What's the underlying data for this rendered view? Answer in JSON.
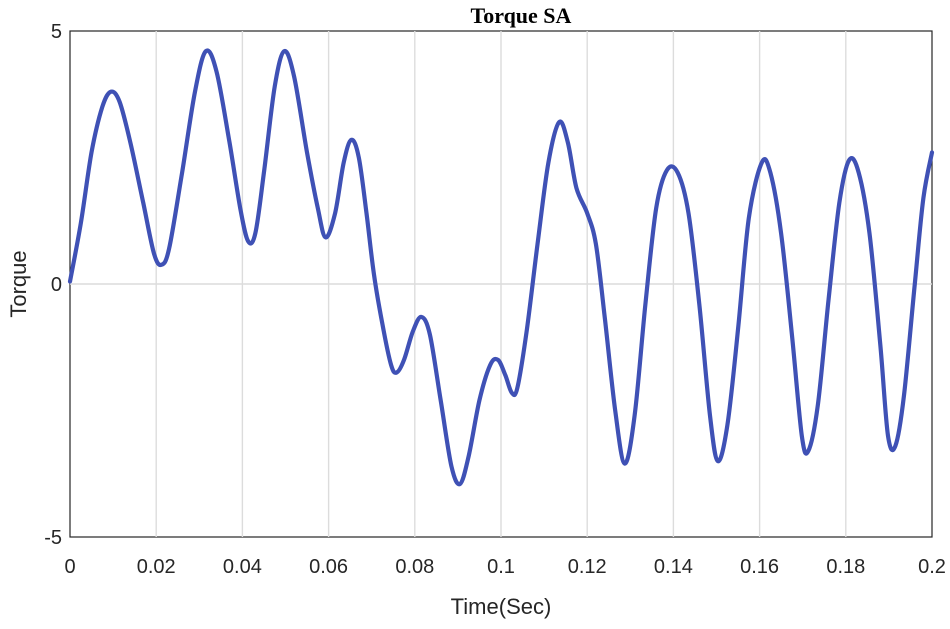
{
  "chart_data": {
    "type": "line",
    "title": "Torque SA",
    "xlabel": "Time(Sec)",
    "ylabel": "Torque",
    "xlim": [
      0,
      0.2
    ],
    "ylim": [
      -5,
      5
    ],
    "x_ticks": [
      "0",
      "0.02",
      "0.04",
      "0.06",
      "0.08",
      "0.1",
      "0.12",
      "0.14",
      "0.16",
      "0.18",
      "0.2"
    ],
    "y_ticks": [
      "5",
      "0",
      "-5"
    ],
    "grid": true,
    "series": [
      {
        "color": "#3f51b5",
        "points": [
          [
            0,
            0.05
          ],
          [
            0.0025,
            1.2
          ],
          [
            0.005,
            2.6
          ],
          [
            0.0075,
            3.5
          ],
          [
            0.0095,
            3.8
          ],
          [
            0.0115,
            3.6
          ],
          [
            0.014,
            2.8
          ],
          [
            0.017,
            1.6
          ],
          [
            0.0195,
            0.6
          ],
          [
            0.0212,
            0.38
          ],
          [
            0.023,
            0.7
          ],
          [
            0.026,
            2.2
          ],
          [
            0.029,
            3.8
          ],
          [
            0.0315,
            4.6
          ],
          [
            0.034,
            4.2
          ],
          [
            0.037,
            2.8
          ],
          [
            0.0395,
            1.5
          ],
          [
            0.0413,
            0.85
          ],
          [
            0.043,
            1.0
          ],
          [
            0.045,
            2.2
          ],
          [
            0.0475,
            3.9
          ],
          [
            0.0497,
            4.6
          ],
          [
            0.052,
            4.1
          ],
          [
            0.055,
            2.6
          ],
          [
            0.0575,
            1.5
          ],
          [
            0.0593,
            0.92
          ],
          [
            0.0615,
            1.4
          ],
          [
            0.0635,
            2.4
          ],
          [
            0.0653,
            2.85
          ],
          [
            0.067,
            2.5
          ],
          [
            0.0688,
            1.4
          ],
          [
            0.0705,
            0.2
          ],
          [
            0.0725,
            -0.8
          ],
          [
            0.0745,
            -1.6
          ],
          [
            0.0758,
            -1.75
          ],
          [
            0.0775,
            -1.5
          ],
          [
            0.0795,
            -0.95
          ],
          [
            0.0815,
            -0.65
          ],
          [
            0.0835,
            -1.0
          ],
          [
            0.086,
            -2.3
          ],
          [
            0.0885,
            -3.6
          ],
          [
            0.0905,
            -3.95
          ],
          [
            0.0925,
            -3.4
          ],
          [
            0.095,
            -2.3
          ],
          [
            0.0975,
            -1.6
          ],
          [
            0.0993,
            -1.5
          ],
          [
            0.101,
            -1.8
          ],
          [
            0.1025,
            -2.15
          ],
          [
            0.1038,
            -2.05
          ],
          [
            0.106,
            -0.9
          ],
          [
            0.1085,
            0.8
          ],
          [
            0.111,
            2.4
          ],
          [
            0.1135,
            3.2
          ],
          [
            0.1155,
            2.8
          ],
          [
            0.1175,
            1.9
          ],
          [
            0.12,
            1.4
          ],
          [
            0.122,
            0.8
          ],
          [
            0.124,
            -0.6
          ],
          [
            0.1265,
            -2.5
          ],
          [
            0.1287,
            -3.55
          ],
          [
            0.131,
            -2.6
          ],
          [
            0.1335,
            -0.4
          ],
          [
            0.136,
            1.5
          ],
          [
            0.1385,
            2.25
          ],
          [
            0.141,
            2.2
          ],
          [
            0.1435,
            1.4
          ],
          [
            0.146,
            -0.4
          ],
          [
            0.1485,
            -2.6
          ],
          [
            0.1503,
            -3.5
          ],
          [
            0.1525,
            -2.8
          ],
          [
            0.155,
            -0.9
          ],
          [
            0.1575,
            1.3
          ],
          [
            0.1605,
            2.4
          ],
          [
            0.1625,
            2.2
          ],
          [
            0.165,
            1.0
          ],
          [
            0.1675,
            -1.0
          ],
          [
            0.1698,
            -3.0
          ],
          [
            0.1713,
            -3.3
          ],
          [
            0.1735,
            -2.4
          ],
          [
            0.176,
            -0.3
          ],
          [
            0.1785,
            1.6
          ],
          [
            0.1808,
            2.45
          ],
          [
            0.183,
            2.2
          ],
          [
            0.1855,
            1.0
          ],
          [
            0.188,
            -1.2
          ],
          [
            0.1898,
            -3.0
          ],
          [
            0.1915,
            -3.2
          ],
          [
            0.1935,
            -2.2
          ],
          [
            0.196,
            0.0
          ],
          [
            0.198,
            1.7
          ],
          [
            0.2,
            2.6
          ]
        ]
      }
    ]
  }
}
